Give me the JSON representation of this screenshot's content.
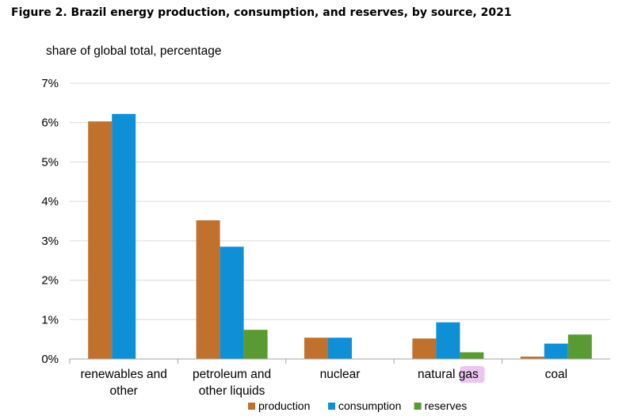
{
  "figure_title": "Figure 2. Brazil energy production, consumption, and reserves, by source, 2021",
  "chart_data": {
    "type": "bar",
    "title": "Figure 2. Brazil energy production, consumption, and reserves, by source, 2021",
    "ylabel": "share of global total, percentage",
    "xlabel": "",
    "ylim": [
      0,
      7
    ],
    "yticks": [
      0,
      1,
      2,
      3,
      4,
      5,
      6,
      7
    ],
    "ytick_labels": [
      "0%",
      "1%",
      "2%",
      "3%",
      "4%",
      "5%",
      "6%",
      "7%"
    ],
    "categories": [
      [
        "renewables and",
        "other"
      ],
      [
        "petroleum and",
        "other liquids"
      ],
      [
        "nuclear"
      ],
      [
        "natural",
        "gas"
      ],
      [
        "coal"
      ]
    ],
    "highlighted_word": "gas",
    "series": [
      {
        "name": "production",
        "color": "#C0712D",
        "values": [
          6.03,
          3.52,
          0.54,
          0.52,
          0.06
        ]
      },
      {
        "name": "consumption",
        "color": "#0E8FD6",
        "values": [
          6.22,
          2.85,
          0.54,
          0.93,
          0.39
        ]
      },
      {
        "name": "reserves",
        "color": "#5A9A32",
        "values": [
          0,
          0.74,
          0,
          0.17,
          0.62
        ]
      }
    ],
    "grid": true,
    "legend_position": "bottom"
  }
}
